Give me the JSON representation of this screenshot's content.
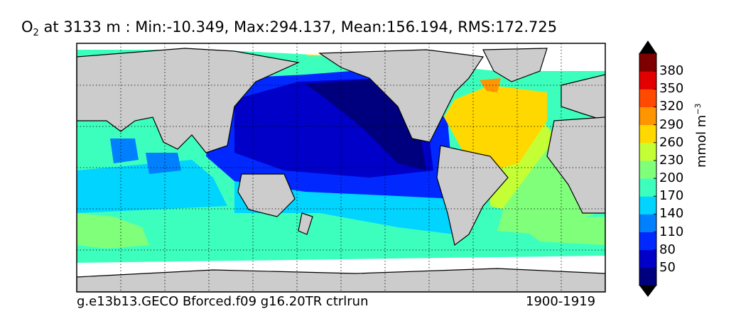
{
  "title": {
    "variable": "O",
    "subscript": "2",
    "text": "at 3133 m : Min:-10.349, Max:294.137, Mean:156.194, RMS:172.725"
  },
  "footer": {
    "run": "g.e13b13.GECO Bforced.f09 g16.20TR ctrlrun",
    "years": "1900-1919"
  },
  "colorbar": {
    "unit": "mmol m",
    "unit_exp": "−3",
    "levels": [
      50,
      80,
      110,
      140,
      170,
      200,
      230,
      260,
      290,
      320,
      350,
      380
    ],
    "colors": [
      "#00007f",
      "#0000c8",
      "#0028ff",
      "#0080ff",
      "#00d4ff",
      "#3cffbe",
      "#80ff7a",
      "#c4ff36",
      "#ffd800",
      "#ff9500",
      "#ff4a00",
      "#e30000",
      "#7f0000"
    ]
  },
  "map": {
    "land_color": "#cccccc",
    "nodata_color": "#ffffff",
    "grid": true
  }
}
